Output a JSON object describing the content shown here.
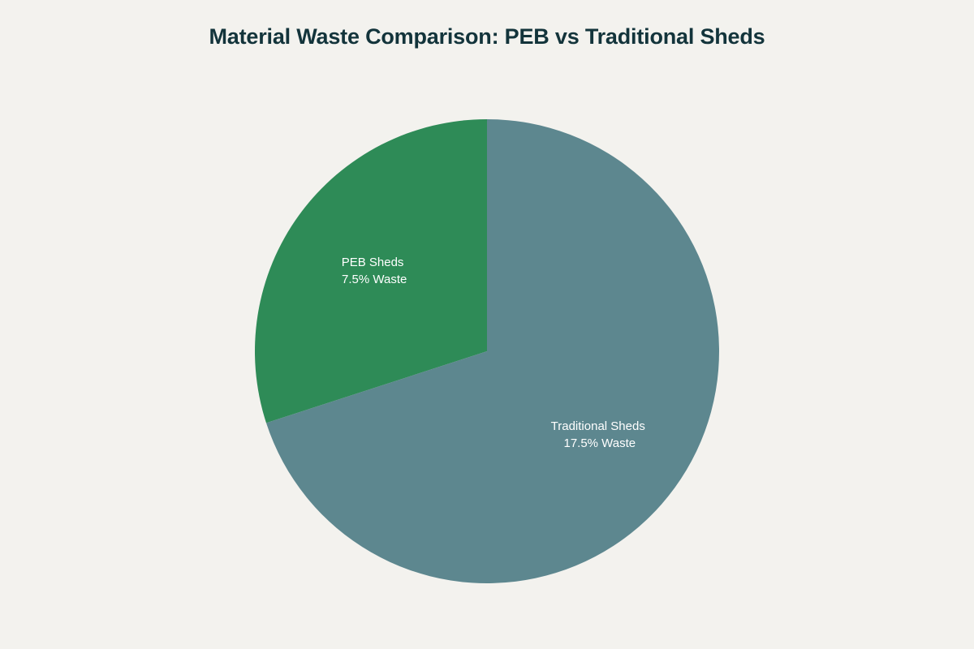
{
  "title": "Material Waste Comparison: PEB vs Traditional Sheds",
  "chart_data": {
    "type": "pie",
    "title": "Material Waste Comparison: PEB vs Traditional Sheds",
    "categories": [
      "PEB Sheds",
      "Traditional Sheds"
    ],
    "values": [
      7.5,
      17.5
    ],
    "unit": "% Waste",
    "colors": [
      "#2e8b57",
      "#5d878f"
    ],
    "labels": [
      {
        "line1": "PEB Sheds",
        "line2": "7.5% Waste"
      },
      {
        "line1": "Traditional Sheds",
        "line2": "17.5% Waste"
      }
    ],
    "legend": "none",
    "start_angle": "12 o'clock",
    "direction": "counterclockwise"
  },
  "style": {
    "background": "#f3f2ee",
    "title_color": "#13343b"
  }
}
